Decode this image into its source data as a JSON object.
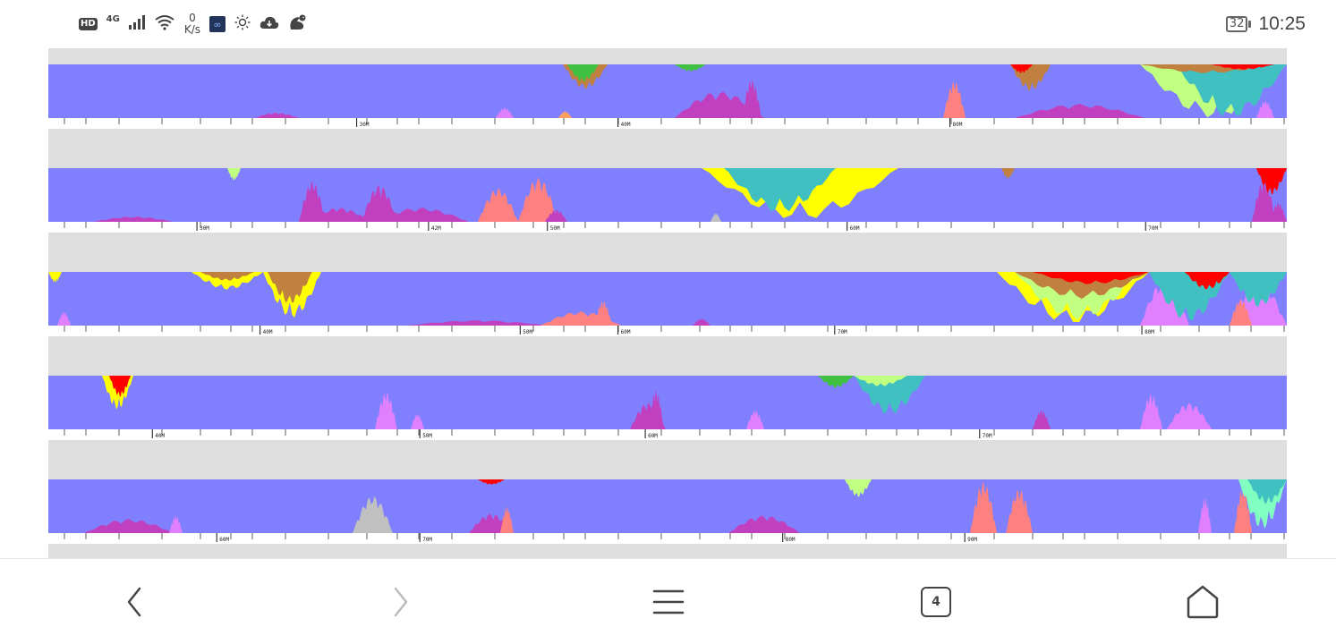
{
  "status_bar": {
    "hd": "HD",
    "network": "4G",
    "speed_value": "0",
    "speed_unit": "K/s",
    "battery": "32",
    "time": "10:25",
    "icons": [
      "signal-icon",
      "wifi-icon",
      "app-icon",
      "brightness-icon",
      "cloud-icon",
      "squirrel-icon"
    ]
  },
  "tracks": [
    {
      "ticks": [
        {
          "label": "30M",
          "pos": 0.249
        },
        {
          "label": "40M",
          "pos": 0.46
        },
        {
          "label": "80M",
          "pos": 0.728
        }
      ]
    },
    {
      "ticks": [
        {
          "label": "30M",
          "pos": 0.12
        },
        {
          "label": "42M",
          "pos": 0.307
        },
        {
          "label": "50M",
          "pos": 0.403
        },
        {
          "label": "60M",
          "pos": 0.645
        },
        {
          "label": "70M",
          "pos": 0.886
        }
      ]
    },
    {
      "ticks": [
        {
          "label": "40M",
          "pos": 0.171
        },
        {
          "label": "50M",
          "pos": 0.381
        },
        {
          "label": "60M",
          "pos": 0.46
        },
        {
          "label": "70M",
          "pos": 0.635
        },
        {
          "label": "80M",
          "pos": 0.883
        }
      ]
    },
    {
      "ticks": [
        {
          "label": "40M",
          "pos": 0.084
        },
        {
          "label": "50M",
          "pos": 0.3
        },
        {
          "label": "60M",
          "pos": 0.482
        },
        {
          "label": "70M",
          "pos": 0.752
        }
      ]
    },
    {
      "ticks": [
        {
          "label": "60M",
          "pos": 0.136
        },
        {
          "label": "70M",
          "pos": 0.3
        },
        {
          "label": "80M",
          "pos": 0.593
        },
        {
          "label": "90M",
          "pos": 0.74
        }
      ]
    }
  ],
  "colors": {
    "base": "#8080ff",
    "panel_bg": "#dedede",
    "magenta": "#c040c0",
    "salmon": "#ff8080",
    "yellow": "#ffff00",
    "teal": "#40c0c0",
    "red": "#ff0000",
    "brown": "#c08040",
    "lime": "#c0ff80",
    "pink": "#e080ff",
    "green": "#40c040",
    "grey": "#c0c0c0",
    "aqua": "#80ffc0",
    "orange": "#ffa060"
  },
  "navigation": {
    "tab_count": "4"
  }
}
